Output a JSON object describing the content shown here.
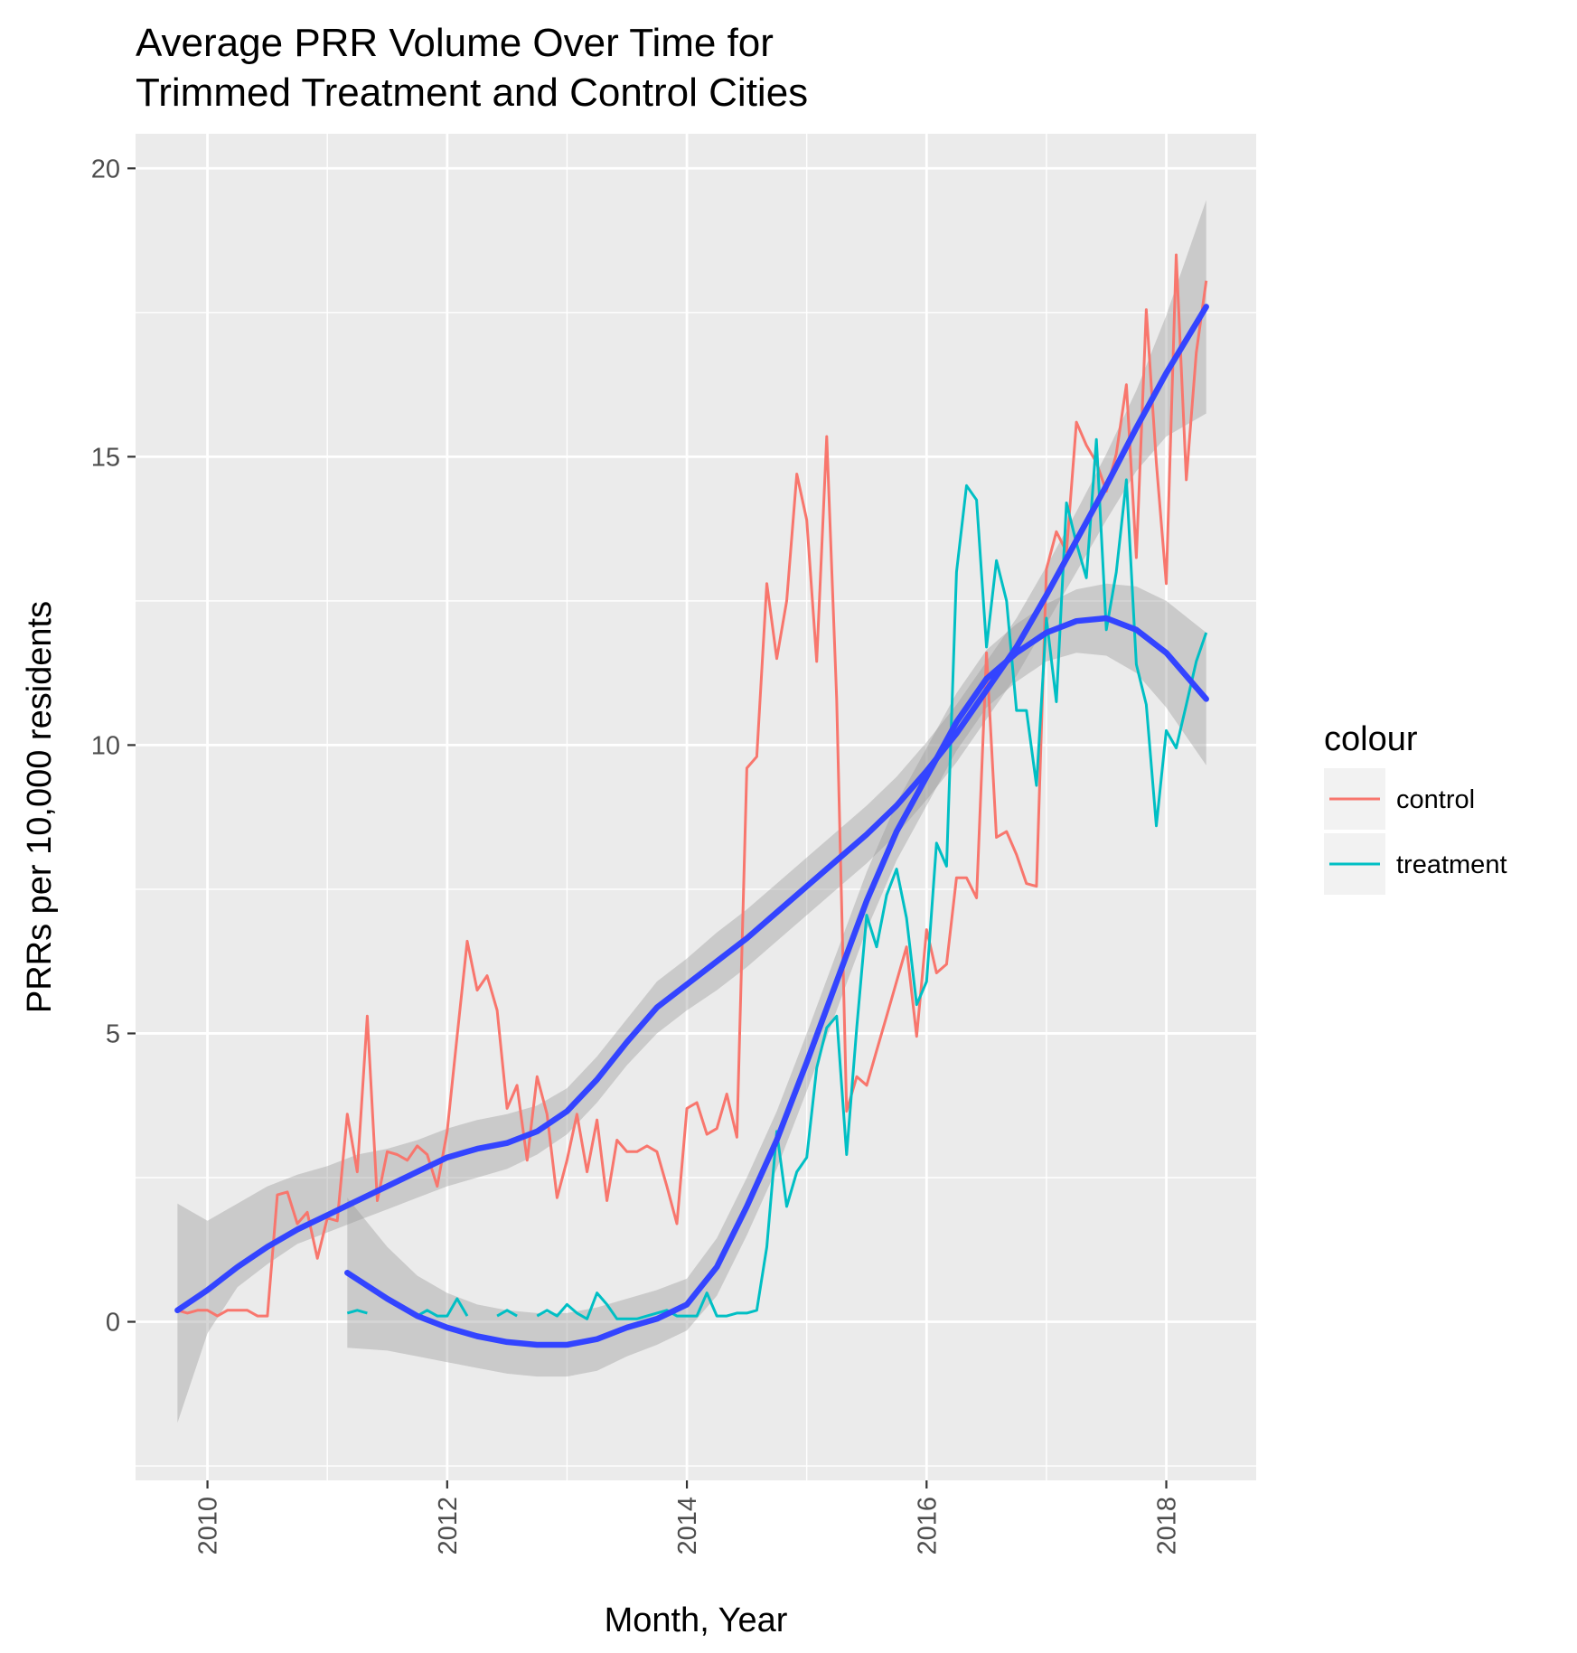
{
  "chart_data": {
    "type": "line",
    "title_lines": [
      "Average PRR Volume Over Time for",
      "Trimmed Treatment and Control Cities"
    ],
    "xlabel": "Month, Year",
    "ylabel": "PRRs per 10,000 residents",
    "xlim": [
      2009.4,
      2018.75
    ],
    "ylim": [
      -2.75,
      20.6
    ],
    "x_ticks": [
      2010,
      2012,
      2014,
      2016,
      2018
    ],
    "x_tick_labels": [
      "2010",
      "2012",
      "2014",
      "2016",
      "2018"
    ],
    "y_ticks": [
      0,
      5,
      10,
      15,
      20
    ],
    "y_tick_labels": [
      "0",
      "5",
      "10",
      "15",
      "20"
    ],
    "grid": true,
    "legend": {
      "title": "colour",
      "position": "right"
    },
    "colors": {
      "control": "#F8766D",
      "treatment": "#00BFC4",
      "smooth": "#3344FF",
      "band": "#999999",
      "panel": "#EBEBEB",
      "grid": "#FFFFFF"
    },
    "series": [
      {
        "name": "control",
        "color": "#F8766D",
        "x": [
          2009.75,
          2009.833,
          2009.917,
          2010.0,
          2010.083,
          2010.167,
          2010.25,
          2010.333,
          2010.417,
          2010.5,
          2010.583,
          2010.667,
          2010.75,
          2010.833,
          2010.917,
          2011.0,
          2011.083,
          2011.167,
          2011.25,
          2011.333,
          2011.417,
          2011.5,
          2011.583,
          2011.667,
          2011.75,
          2011.833,
          2011.917,
          2012.0,
          2012.083,
          2012.167,
          2012.25,
          2012.333,
          2012.417,
          2012.5,
          2012.583,
          2012.667,
          2012.75,
          2012.833,
          2012.917,
          2013.0,
          2013.083,
          2013.167,
          2013.25,
          2013.333,
          2013.417,
          2013.5,
          2013.583,
          2013.667,
          2013.75,
          2013.833,
          2013.917,
          2014.0,
          2014.083,
          2014.167,
          2014.25,
          2014.333,
          2014.417,
          2014.5,
          2014.583,
          2014.667,
          2014.75,
          2014.833,
          2014.917,
          2015.0,
          2015.083,
          2015.167,
          2015.25,
          2015.333,
          2015.417,
          2015.5,
          2015.583,
          2015.667,
          2015.75,
          2015.833,
          2015.917,
          2016.0,
          2016.083,
          2016.167,
          2016.25,
          2016.333,
          2016.417,
          2016.5,
          2016.583,
          2016.667,
          2016.75,
          2016.833,
          2016.917,
          2017.0,
          2017.083,
          2017.167,
          2017.25,
          2017.333,
          2017.417,
          2017.5,
          2017.583,
          2017.667,
          2017.75,
          2017.833,
          2017.917,
          2018.0,
          2018.083,
          2018.167,
          2018.25,
          2018.333
        ],
        "y": [
          0.2,
          0.15,
          0.2,
          0.2,
          0.1,
          0.2,
          0.2,
          0.2,
          0.1,
          0.1,
          2.2,
          2.25,
          1.7,
          1.9,
          1.1,
          1.8,
          1.75,
          3.6,
          2.6,
          5.3,
          2.1,
          2.95,
          2.9,
          2.8,
          3.05,
          2.9,
          2.35,
          3.3,
          4.95,
          6.6,
          5.75,
          6.0,
          5.4,
          3.7,
          4.1,
          2.8,
          4.25,
          3.6,
          2.15,
          2.8,
          3.6,
          2.6,
          3.5,
          2.1,
          3.15,
          2.95,
          2.95,
          3.05,
          2.95,
          2.35,
          1.7,
          3.7,
          3.8,
          3.25,
          3.35,
          3.95,
          3.2,
          9.6,
          9.8,
          12.8,
          11.5,
          12.5,
          14.7,
          13.9,
          11.45,
          15.35,
          10.8,
          3.65,
          4.25,
          4.1,
          4.7,
          5.3,
          5.9,
          6.5,
          4.95,
          6.8,
          6.05,
          6.2,
          7.7,
          7.7,
          7.35,
          11.6,
          8.4,
          8.5,
          8.1,
          7.6,
          7.55,
          13.05,
          13.7,
          13.35,
          15.6,
          15.2,
          14.9,
          14.4,
          15.05,
          16.25,
          13.25,
          17.55,
          14.9,
          12.8,
          18.5,
          14.6,
          16.8,
          18.05
        ]
      },
      {
        "name": "treatment",
        "color": "#00BFC4",
        "x": [
          2011.167,
          2011.25,
          2011.333,
          2011.417,
          2011.5,
          2011.583,
          2011.667,
          2011.75,
          2011.833,
          2011.917,
          2012.0,
          2012.083,
          2012.167,
          2012.25,
          2012.333,
          2012.417,
          2012.5,
          2012.583,
          2012.667,
          2012.75,
          2012.833,
          2012.917,
          2013.0,
          2013.083,
          2013.167,
          2013.25,
          2013.333,
          2013.417,
          2013.5,
          2013.583,
          2013.667,
          2013.75,
          2013.833,
          2013.917,
          2014.0,
          2014.083,
          2014.167,
          2014.25,
          2014.333,
          2014.417,
          2014.5,
          2014.583,
          2014.667,
          2014.75,
          2014.833,
          2014.917,
          2015.0,
          2015.083,
          2015.167,
          2015.25,
          2015.333,
          2015.417,
          2015.5,
          2015.583,
          2015.667,
          2015.75,
          2015.833,
          2015.917,
          2016.0,
          2016.083,
          2016.167,
          2016.25,
          2016.333,
          2016.417,
          2016.5,
          2016.583,
          2016.667,
          2016.75,
          2016.833,
          2016.917,
          2017.0,
          2017.083,
          2017.167,
          2017.25,
          2017.333,
          2017.417,
          2017.5,
          2017.583,
          2017.667,
          2017.75,
          2017.833,
          2017.917,
          2018.0,
          2018.083,
          2018.167,
          2018.25,
          2018.333
        ],
        "y": [
          0.15,
          0.2,
          0.15,
          null,
          null,
          null,
          null,
          0.1,
          0.2,
          0.1,
          0.1,
          0.4,
          0.1,
          null,
          null,
          0.1,
          0.2,
          0.1,
          null,
          0.1,
          0.2,
          0.1,
          0.3,
          0.15,
          0.05,
          0.5,
          0.3,
          0.05,
          0.05,
          0.05,
          0.1,
          0.15,
          0.2,
          0.1,
          0.1,
          0.1,
          0.5,
          0.1,
          0.1,
          0.15,
          0.15,
          0.2,
          1.3,
          3.3,
          2.0,
          2.6,
          2.85,
          4.4,
          5.1,
          5.3,
          2.9,
          5.1,
          7.05,
          6.5,
          7.4,
          7.85,
          7.0,
          5.5,
          5.9,
          8.3,
          7.9,
          13.0,
          14.5,
          14.25,
          11.7,
          13.2,
          12.5,
          10.6,
          10.6,
          9.3,
          12.2,
          10.75,
          14.2,
          13.5,
          12.9,
          15.3,
          12.0,
          13.0,
          14.6,
          11.4,
          10.7,
          8.6,
          10.25,
          9.95,
          10.7,
          11.45,
          11.95
        ]
      }
    ],
    "smooth": [
      {
        "name": "control",
        "x": [
          2009.75,
          2010.0,
          2010.25,
          2010.5,
          2010.75,
          2011.0,
          2011.25,
          2011.5,
          2011.75,
          2012.0,
          2012.25,
          2012.5,
          2012.75,
          2013.0,
          2013.25,
          2013.5,
          2013.75,
          2014.0,
          2014.25,
          2014.5,
          2014.75,
          2015.0,
          2015.25,
          2015.5,
          2015.75,
          2016.0,
          2016.25,
          2016.5,
          2016.75,
          2017.0,
          2017.25,
          2017.5,
          2017.75,
          2018.0,
          2018.333
        ],
        "y": [
          0.2,
          0.55,
          0.95,
          1.3,
          1.6,
          1.85,
          2.1,
          2.35,
          2.6,
          2.85,
          3.0,
          3.1,
          3.3,
          3.65,
          4.2,
          4.85,
          5.45,
          5.85,
          6.25,
          6.65,
          7.1,
          7.55,
          8.0,
          8.45,
          8.95,
          9.55,
          10.2,
          10.95,
          11.7,
          12.6,
          13.55,
          14.5,
          15.5,
          16.45,
          17.6
        ],
        "lower": [
          -1.75,
          -0.2,
          0.6,
          1.0,
          1.35,
          1.55,
          1.75,
          1.95,
          2.15,
          2.35,
          2.5,
          2.65,
          2.9,
          3.25,
          3.8,
          4.45,
          5.0,
          5.4,
          5.75,
          6.15,
          6.6,
          7.05,
          7.5,
          7.95,
          8.45,
          9.05,
          9.7,
          10.45,
          11.2,
          12.1,
          13.0,
          13.9,
          14.75,
          15.35,
          15.75
        ],
        "upper": [
          2.05,
          1.75,
          2.05,
          2.35,
          2.55,
          2.7,
          2.9,
          3.0,
          3.15,
          3.35,
          3.5,
          3.6,
          3.75,
          4.05,
          4.6,
          5.25,
          5.9,
          6.3,
          6.75,
          7.15,
          7.6,
          8.05,
          8.5,
          8.95,
          9.45,
          10.05,
          10.7,
          11.45,
          12.2,
          13.1,
          14.05,
          15.05,
          16.15,
          17.45,
          19.45
        ]
      },
      {
        "name": "treatment",
        "x": [
          2011.167,
          2011.5,
          2011.75,
          2012.0,
          2012.25,
          2012.5,
          2012.75,
          2013.0,
          2013.25,
          2013.5,
          2013.75,
          2014.0,
          2014.25,
          2014.5,
          2014.75,
          2015.0,
          2015.25,
          2015.5,
          2015.75,
          2016.0,
          2016.25,
          2016.5,
          2016.75,
          2017.0,
          2017.25,
          2017.5,
          2017.75,
          2018.0,
          2018.333
        ],
        "y": [
          0.85,
          0.4,
          0.1,
          -0.1,
          -0.25,
          -0.35,
          -0.4,
          -0.4,
          -0.3,
          -0.1,
          0.05,
          0.3,
          0.95,
          2.0,
          3.15,
          4.5,
          5.9,
          7.3,
          8.5,
          9.45,
          10.4,
          11.15,
          11.6,
          11.95,
          12.15,
          12.2,
          12.0,
          11.6,
          10.8
        ],
        "lower": [
          -0.45,
          -0.5,
          -0.6,
          -0.7,
          -0.8,
          -0.9,
          -0.95,
          -0.95,
          -0.85,
          -0.6,
          -0.4,
          -0.15,
          0.45,
          1.5,
          2.65,
          4.0,
          5.4,
          6.8,
          8.0,
          8.95,
          9.9,
          10.65,
          11.1,
          11.45,
          11.6,
          11.55,
          11.25,
          10.65,
          9.65
        ],
        "upper": [
          2.15,
          1.3,
          0.8,
          0.5,
          0.3,
          0.2,
          0.15,
          0.15,
          0.25,
          0.4,
          0.55,
          0.75,
          1.45,
          2.5,
          3.65,
          5.0,
          6.4,
          7.8,
          9.0,
          9.95,
          10.9,
          11.65,
          12.1,
          12.45,
          12.7,
          12.8,
          12.75,
          12.5,
          11.95
        ]
      }
    ]
  }
}
